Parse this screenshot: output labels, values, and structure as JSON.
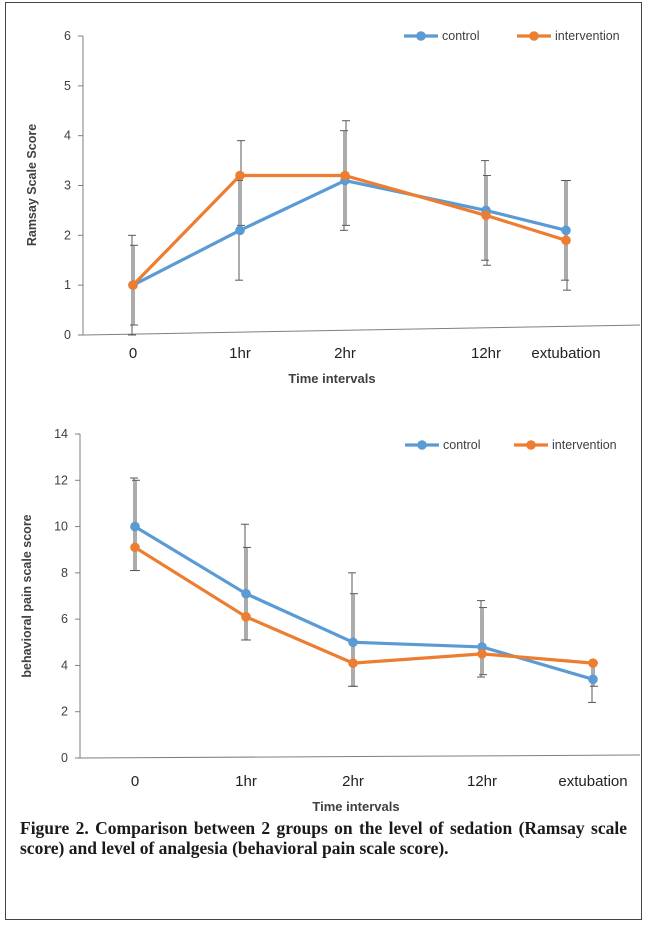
{
  "colors": {
    "control": "#5B9BD5",
    "intervention": "#ED7D31",
    "axis": "#7f7f7f",
    "error_bar": "#595959",
    "text": "#404040"
  },
  "caption": "Figure 2. Comparison between 2 groups on the level of sedation (Ramsay scale score) and level of analgesia (behavioral pain scale score).",
  "chart_data": [
    {
      "type": "line",
      "ylabel": "Ramsay Scale Score",
      "xlabel": "Time intervals",
      "categories": [
        "0",
        "1hr",
        "2hr",
        "12hr",
        "extubation"
      ],
      "ylim": [
        0,
        6
      ],
      "yticks": [
        "0",
        "1",
        "2",
        "3",
        "4",
        "5",
        "6"
      ],
      "legend_position": "top-right",
      "grid": false,
      "series": [
        {
          "name": "control",
          "values": [
            1.0,
            2.1,
            3.1,
            2.5,
            2.1
          ],
          "error_low": [
            0.0,
            1.1,
            2.1,
            1.5,
            1.1
          ],
          "error_high": [
            2.0,
            3.1,
            4.1,
            3.5,
            3.1
          ]
        },
        {
          "name": "intervention",
          "values": [
            1.0,
            3.2,
            3.2,
            2.4,
            1.9
          ],
          "error_low": [
            0.2,
            2.2,
            2.2,
            1.4,
            0.9
          ],
          "error_high": [
            1.8,
            3.9,
            4.3,
            3.2,
            3.1
          ]
        }
      ]
    },
    {
      "type": "line",
      "ylabel": "behavioral pain scale  score",
      "xlabel": "Time intervals",
      "categories": [
        "0",
        "1hr",
        "2hr",
        "12hr",
        "extubation"
      ],
      "ylim": [
        0,
        14
      ],
      "yticks": [
        "0",
        "2",
        "4",
        "6",
        "8",
        "10",
        "12",
        "14"
      ],
      "legend_position": "top-right",
      "grid": false,
      "series": [
        {
          "name": "control",
          "values": [
            10.0,
            7.1,
            5.0,
            4.8,
            3.4
          ],
          "error_low": [
            8.1,
            5.1,
            3.1,
            3.5,
            2.4
          ],
          "error_high": [
            12.1,
            10.1,
            8.0,
            6.8,
            4.1
          ]
        },
        {
          "name": "intervention",
          "values": [
            9.1,
            6.1,
            4.1,
            4.5,
            4.1
          ],
          "error_low": [
            8.1,
            5.1,
            3.1,
            3.6,
            3.1
          ],
          "error_high": [
            12.0,
            9.1,
            7.1,
            6.5,
            4.1
          ]
        }
      ]
    }
  ]
}
